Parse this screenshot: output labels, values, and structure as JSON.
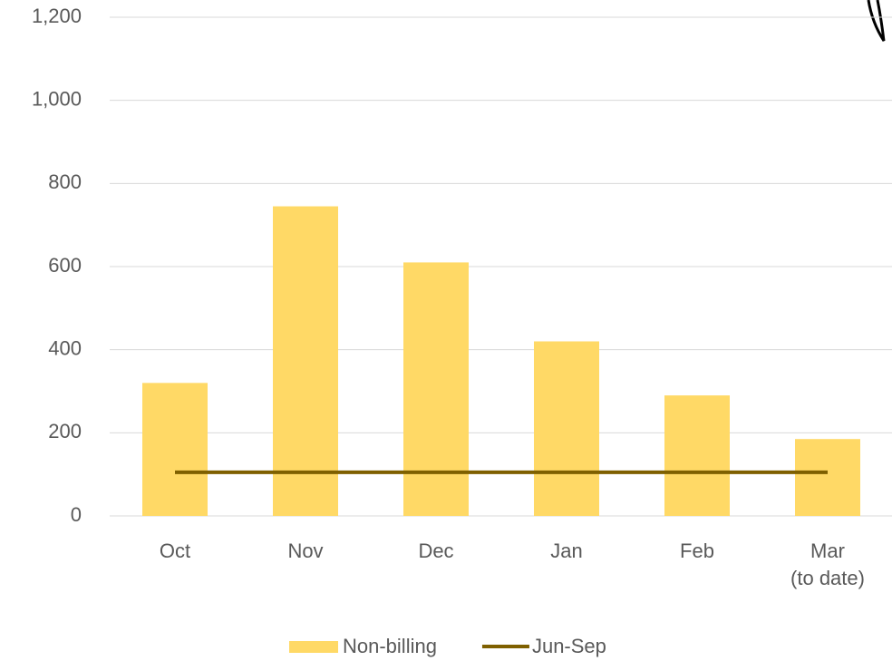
{
  "chart_data": {
    "type": "bar",
    "categories": [
      "Oct",
      "Nov",
      "Dec",
      "Jan",
      "Feb",
      "Mar\n(to date)"
    ],
    "series": [
      {
        "name": "Non-billing",
        "type": "bar",
        "color": "#ffd966",
        "values": [
          320,
          745,
          610,
          420,
          290,
          185
        ]
      },
      {
        "name": "Jun-Sep",
        "type": "line",
        "color": "#7f6000",
        "values": [
          105,
          105,
          105,
          105,
          105,
          105
        ]
      }
    ],
    "ylim": [
      0,
      1200
    ],
    "yticks": [
      0,
      200,
      400,
      600,
      800,
      {
        "value": 1000,
        "label": "1,000"
      },
      {
        "value": 1200,
        "label": "1,200"
      }
    ],
    "grid": true,
    "legend": "bottom"
  }
}
